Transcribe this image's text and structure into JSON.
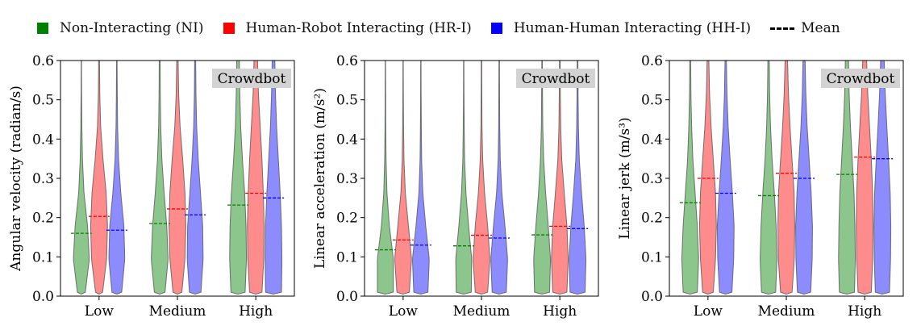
{
  "legend": {
    "items": [
      {
        "label": "Non-Interacting (NI)",
        "color": "#008000"
      },
      {
        "label": "Human-Robot Interacting (HR-I)",
        "color": "#ff0000"
      },
      {
        "label": "Human-Human Interacting (HH-I)",
        "color": "#0000ff"
      }
    ],
    "mean_label": "Mean"
  },
  "chart_data": [
    {
      "type": "violin",
      "ylabel": "Angular velocity (radian/s)",
      "annotation": "Crowdbot",
      "categories": [
        "Low",
        "Medium",
        "High"
      ],
      "ylim": [
        0,
        0.6
      ],
      "yticks": [
        "0.0",
        "0.1",
        "0.2",
        "0.3",
        "0.4",
        "0.5",
        "0.6"
      ],
      "series": [
        {
          "name": "Non-Interacting (NI)",
          "color": "#008000",
          "means": [
            0.16,
            0.185,
            0.232
          ],
          "widths": [
            [
              0.45,
              0.9,
              0.7,
              0.3,
              0.13,
              0.06,
              0.03,
              0.02
            ],
            [
              0.6,
              0.95,
              0.8,
              0.5,
              0.25,
              0.12,
              0.07,
              0.05
            ],
            [
              0.8,
              0.95,
              0.9,
              0.75,
              0.5,
              0.3,
              0.2,
              0.15
            ]
          ]
        },
        {
          "name": "Human-Robot Interacting (HR-I)",
          "color": "#ff0000",
          "means": [
            0.203,
            0.222,
            0.262
          ],
          "widths": [
            [
              0.4,
              0.85,
              0.95,
              0.8,
              0.45,
              0.18,
              0.08,
              0.05
            ],
            [
              0.5,
              0.85,
              0.95,
              0.85,
              0.6,
              0.3,
              0.14,
              0.08
            ],
            [
              0.7,
              0.9,
              0.95,
              0.85,
              0.7,
              0.5,
              0.3,
              0.2
            ]
          ]
        },
        {
          "name": "Human-Human Interacting (HH-I)",
          "color": "#0000ff",
          "means": [
            0.168,
            0.207,
            0.25
          ],
          "widths": [
            [
              0.55,
              0.9,
              0.8,
              0.45,
              0.2,
              0.09,
              0.05,
              0.03
            ],
            [
              0.65,
              0.9,
              0.85,
              0.6,
              0.35,
              0.17,
              0.09,
              0.06
            ],
            [
              0.9,
              0.95,
              0.9,
              0.75,
              0.55,
              0.35,
              0.22,
              0.15
            ]
          ]
        }
      ]
    },
    {
      "type": "violin",
      "ylabel": "Linear acceleration (m/s²)",
      "annotation": "Crowdbot",
      "categories": [
        "Low",
        "Medium",
        "High"
      ],
      "ylim": [
        0,
        0.6
      ],
      "yticks": [
        "0.0",
        "0.1",
        "0.2",
        "0.3",
        "0.4",
        "0.5",
        "0.6"
      ],
      "series": [
        {
          "name": "Non-Interacting (NI)",
          "color": "#008000",
          "means": [
            0.118,
            0.128,
            0.156
          ],
          "widths": [
            [
              0.9,
              0.9,
              0.45,
              0.18,
              0.08,
              0.04,
              0.03,
              0.02
            ],
            [
              0.85,
              0.9,
              0.55,
              0.25,
              0.1,
              0.05,
              0.03,
              0.02
            ],
            [
              0.85,
              0.95,
              0.7,
              0.4,
              0.18,
              0.08,
              0.05,
              0.03
            ]
          ]
        },
        {
          "name": "Human-Robot Interacting (HR-I)",
          "color": "#ff0000",
          "means": [
            0.143,
            0.155,
            0.178
          ],
          "widths": [
            [
              0.7,
              0.95,
              0.6,
              0.25,
              0.1,
              0.05,
              0.03,
              0.02
            ],
            [
              0.7,
              0.95,
              0.7,
              0.35,
              0.14,
              0.06,
              0.04,
              0.03
            ],
            [
              0.8,
              0.95,
              0.8,
              0.5,
              0.22,
              0.1,
              0.06,
              0.04
            ]
          ]
        },
        {
          "name": "Human-Human Interacting (HH-I)",
          "color": "#0000ff",
          "means": [
            0.13,
            0.148,
            0.172
          ],
          "widths": [
            [
              0.8,
              0.95,
              0.55,
              0.22,
              0.09,
              0.05,
              0.03,
              0.02
            ],
            [
              0.8,
              0.95,
              0.65,
              0.3,
              0.12,
              0.06,
              0.04,
              0.03
            ],
            [
              0.85,
              0.95,
              0.75,
              0.45,
              0.2,
              0.1,
              0.06,
              0.04
            ]
          ]
        }
      ]
    },
    {
      "type": "violin",
      "ylabel": "Linear jerk (m/s³)",
      "annotation": "Crowdbot",
      "categories": [
        "Low",
        "Medium",
        "High"
      ],
      "ylim": [
        0,
        0.6
      ],
      "yticks": [
        "0.0",
        "0.1",
        "0.2",
        "0.3",
        "0.4",
        "0.5",
        "0.6"
      ],
      "series": [
        {
          "name": "Non-Interacting (NI)",
          "color": "#008000",
          "means": [
            0.238,
            0.256,
            0.31
          ],
          "widths": [
            [
              0.8,
              0.95,
              0.8,
              0.55,
              0.3,
              0.16,
              0.08,
              0.05
            ],
            [
              0.8,
              0.95,
              0.85,
              0.65,
              0.4,
              0.22,
              0.12,
              0.08
            ],
            [
              0.85,
              0.95,
              0.9,
              0.8,
              0.6,
              0.4,
              0.25,
              0.18
            ]
          ]
        },
        {
          "name": "Human-Robot Interacting (HR-I)",
          "color": "#ff0000",
          "means": [
            0.3,
            0.313,
            0.354
          ],
          "widths": [
            [
              0.6,
              0.85,
              0.95,
              0.85,
              0.6,
              0.35,
              0.18,
              0.1
            ],
            [
              0.65,
              0.9,
              0.95,
              0.88,
              0.65,
              0.42,
              0.24,
              0.14
            ],
            [
              0.75,
              0.9,
              0.95,
              0.9,
              0.75,
              0.55,
              0.35,
              0.22
            ]
          ]
        },
        {
          "name": "Human-Human Interacting (HH-I)",
          "color": "#0000ff",
          "means": [
            0.262,
            0.3,
            0.35
          ],
          "widths": [
            [
              0.7,
              0.9,
              0.95,
              0.75,
              0.5,
              0.28,
              0.14,
              0.08
            ],
            [
              0.75,
              0.92,
              0.95,
              0.8,
              0.58,
              0.35,
              0.2,
              0.12
            ],
            [
              0.8,
              0.92,
              0.95,
              0.88,
              0.7,
              0.5,
              0.32,
              0.2
            ]
          ]
        }
      ]
    }
  ]
}
